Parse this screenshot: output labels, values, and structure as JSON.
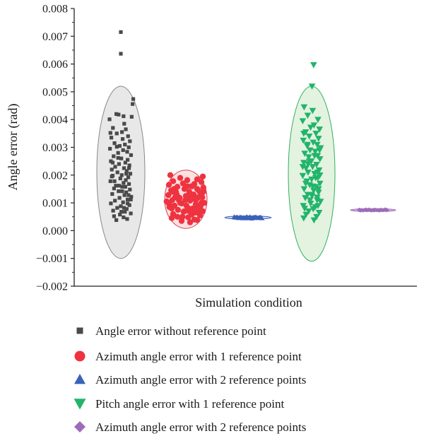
{
  "chart_data": {
    "type": "scatter",
    "xlabel": "Simulation condition",
    "ylabel": "Angle error (rad)",
    "ylim": [
      -0.002,
      0.008
    ],
    "yticks": [
      "−0.002",
      "−0.001",
      "0.000",
      "0.001",
      "0.002",
      "0.003",
      "0.004",
      "0.005",
      "0.006",
      "0.007",
      "0.008"
    ],
    "ytick_values": [
      -0.002,
      -0.001,
      0.0,
      0.001,
      0.002,
      0.003,
      0.004,
      0.005,
      0.006,
      0.007,
      0.008
    ],
    "grid": false,
    "legend_position": "bottom",
    "series": [
      {
        "name": "Angle error without reference point",
        "marker": "square",
        "color": "#4a4a4a",
        "x": 1,
        "ellipse": {
          "center": 0.0021,
          "half_height": 0.0031,
          "fill": "#e8e8e8",
          "stroke": "#888888"
        },
        "values": [
          0.00715,
          0.00637,
          0.00474,
          0.00456,
          0.0042,
          0.00418,
          0.00412,
          0.0041,
          0.00401,
          0.00385,
          0.0037,
          0.00365,
          0.00355,
          0.0035,
          0.0034,
          0.00335,
          0.0033,
          0.00322,
          0.00315,
          0.0031,
          0.00305,
          0.003,
          0.00295,
          0.0029,
          0.00284,
          0.0028,
          0.00272,
          0.00268,
          0.0026,
          0.00255,
          0.0025,
          0.00245,
          0.0024,
          0.00235,
          0.0023,
          0.00225,
          0.0022,
          0.00215,
          0.0021,
          0.00205,
          0.002,
          0.00198,
          0.00192,
          0.00188,
          0.00182,
          0.00178,
          0.00172,
          0.00168,
          0.00162,
          0.00158,
          0.00152,
          0.00148,
          0.00142,
          0.00138,
          0.00132,
          0.00128,
          0.00122,
          0.00118,
          0.00112,
          0.00108,
          0.00102,
          0.00098,
          0.00092,
          0.00088,
          0.00082,
          0.00078,
          0.00072,
          0.00068,
          0.00062,
          0.00058,
          0.00052,
          0.00048,
          0.00042,
          0.00038,
          0.00225,
          0.00178,
          0.00142,
          0.00262,
          0.00112,
          0.00195,
          0.00158,
          0.00302,
          0.00128,
          0.00068,
          0.00245,
          0.00098,
          0.00162,
          0.00352,
          0.00205,
          0.00082
        ],
        "jitter": [
          0.0,
          0.0,
          0.55,
          0.52,
          -0.2,
          -0.1,
          0.12,
          0.48,
          -0.5,
          0.15,
          -0.35,
          0.22,
          0.05,
          -0.18,
          0.32,
          -0.42,
          0.08,
          0.4,
          -0.28,
          0.18,
          -0.05,
          0.35,
          -0.48,
          0.1,
          0.28,
          -0.12,
          0.45,
          -0.32,
          0.02,
          0.3,
          -0.44,
          0.2,
          -0.08,
          0.38,
          -0.25,
          0.14,
          -0.4,
          0.26,
          -0.15,
          0.42,
          0.04,
          -0.36,
          0.33,
          -0.02,
          0.22,
          -0.46,
          0.12,
          0.36,
          -0.22,
          0.06,
          -0.3,
          0.4,
          -0.1,
          0.24,
          -0.38,
          0.16,
          0.46,
          -0.06,
          0.3,
          -0.26,
          0.1,
          -0.44,
          0.38,
          0.0,
          -0.16,
          0.26,
          -0.34,
          0.18,
          0.44,
          -0.04,
          -0.3,
          0.12,
          0.28,
          -0.2,
          0.36,
          -0.28,
          0.06,
          -0.12,
          0.44,
          -0.4,
          0.2,
          -0.18,
          0.34,
          0.02,
          -0.36,
          0.3,
          -0.08,
          -0.46,
          0.24,
          0.14
        ]
      },
      {
        "name": "Azimuth angle error with 1 reference point",
        "marker": "circle",
        "color": "#ee3340",
        "x": 2,
        "ellipse": {
          "center": 0.00113,
          "half_height": 0.00105,
          "fill": "#fde0e0",
          "stroke": "#d04050"
        },
        "values": [
          0.002,
          0.00195,
          0.0019,
          0.00185,
          0.00182,
          0.00178,
          0.00175,
          0.0017,
          0.00168,
          0.00165,
          0.0016,
          0.00158,
          0.00155,
          0.0015,
          0.00148,
          0.00145,
          0.0014,
          0.00138,
          0.00135,
          0.0013,
          0.00128,
          0.00125,
          0.0012,
          0.00118,
          0.00115,
          0.0011,
          0.00108,
          0.00105,
          0.001,
          0.00098,
          0.00095,
          0.0009,
          0.00088,
          0.00085,
          0.0008,
          0.00078,
          0.00075,
          0.0007,
          0.00068,
          0.00065,
          0.0006,
          0.00058,
          0.00055,
          0.0005,
          0.00048,
          0.00045,
          0.0004,
          0.00038,
          0.00035,
          0.0003,
          0.0014,
          0.0012,
          0.001,
          0.0008,
          0.0016,
          0.0009,
          0.0013,
          0.0011,
          0.0007,
          0.0015,
          0.0012,
          0.001,
          0.0014,
          0.0006,
          0.0017,
          0.0009,
          0.0011,
          0.0013,
          0.0008,
          0.0012,
          0.0015,
          0.0005,
          0.001,
          0.0013,
          0.0016,
          0.0007,
          0.0011,
          0.0009,
          0.0014,
          0.0012
        ],
        "jitter": [
          -0.55,
          0.6,
          -0.2,
          0.4,
          0.05,
          -0.45,
          0.55,
          -0.1,
          0.3,
          -0.6,
          0.2,
          -0.3,
          0.62,
          -0.05,
          0.42,
          -0.52,
          0.12,
          0.5,
          -0.35,
          0.25,
          -0.62,
          0.0,
          0.58,
          -0.22,
          0.38,
          -0.48,
          0.15,
          -0.68,
          0.65,
          -0.15,
          0.35,
          -0.4,
          0.52,
          -0.58,
          0.1,
          0.45,
          -0.28,
          0.6,
          -0.08,
          0.32,
          -0.45,
          0.2,
          0.5,
          -0.3,
          0.08,
          -0.5,
          0.3,
          0.4,
          -0.15,
          0.15,
          -0.35,
          0.45,
          -0.2,
          0.25,
          0.05,
          -0.55,
          0.55,
          0.35,
          -0.05,
          -0.42,
          0.18,
          -0.62,
          0.62,
          0.48,
          -0.1,
          0.02,
          -0.25,
          0.28,
          -0.5,
          -0.38,
          0.4,
          -0.12,
          0.55,
          -0.32,
          0.22,
          0.12,
          -0.02,
          0.38,
          -0.48,
          0.1
        ],
        "bubble_y": [
          0.0,
          0.0,
          0.0,
          0.0,
          0.0,
          0.0,
          0.0,
          0.0,
          0.0,
          0.0,
          0.0,
          0.0,
          0.0,
          0.0,
          0.0,
          0.0,
          0.0,
          0.0,
          0.0,
          0.0,
          0.0,
          0.0,
          0.0,
          0.0,
          0.0,
          0.0,
          0.0,
          0.0,
          0.0,
          0.0,
          0.0,
          0.0,
          0.0,
          0.0,
          0.0,
          0.0,
          0.0,
          0.0,
          0.0,
          0.0,
          0.0,
          0.0,
          0.0,
          0.0,
          0.0,
          0.0,
          0.0,
          0.0,
          0.0,
          0.0,
          0.0,
          0.0,
          0.0,
          0.0,
          0.0,
          0.0,
          0.0,
          0.0,
          0.0,
          0.0,
          0.0,
          0.0,
          0.0,
          0.0,
          0.0,
          0.0,
          0.0,
          0.0,
          0.0,
          0.0,
          0.0,
          0.0,
          0.0,
          0.0,
          0.0,
          0.0,
          0.0,
          0.0,
          0.0,
          0.0
        ]
      },
      {
        "name": "Azimuth angle error with 2 reference points",
        "marker": "triangle-up",
        "color": "#3a62b8",
        "x": 3,
        "ellipse": {
          "center": 0.00047,
          "half_height": 6e-05,
          "fill": "#c6d4f0",
          "stroke": "#3a62b8"
        },
        "values": [
          0.0005,
          0.00048,
          0.00046,
          0.00049,
          0.00045,
          0.00047,
          0.00048,
          0.00046,
          0.0005,
          0.00044,
          0.00047,
          0.00049,
          0.00046,
          0.00048,
          0.00045,
          0.00047,
          0.00049,
          0.00046,
          0.00048,
          0.00047,
          0.00045,
          0.0005,
          0.00047,
          0.00046,
          0.00048,
          0.00049,
          0.00046,
          0.00047,
          0.00048,
          0.00045
        ],
        "jitter": [
          -0.7,
          -0.6,
          -0.5,
          -0.4,
          -0.3,
          -0.2,
          -0.1,
          0.0,
          0.1,
          0.2,
          0.3,
          0.4,
          0.5,
          0.6,
          0.7,
          -0.65,
          -0.55,
          -0.45,
          -0.35,
          -0.25,
          -0.15,
          -0.05,
          0.05,
          0.15,
          0.25,
          0.35,
          0.45,
          0.55,
          0.65,
          0.0
        ]
      },
      {
        "name": "Pitch angle error with 1 reference point",
        "marker": "triangle-down",
        "color": "#22b46a",
        "x": 4,
        "ellipse": {
          "center": 0.00205,
          "half_height": 0.00315,
          "fill": "#e3f3e0",
          "stroke": "#30b060"
        },
        "values": [
          0.00597,
          0.0052,
          0.00445,
          0.00432,
          0.00415,
          0.004,
          0.00395,
          0.0038,
          0.00372,
          0.00365,
          0.00355,
          0.0035,
          0.0034,
          0.00332,
          0.00325,
          0.00318,
          0.0031,
          0.00305,
          0.00298,
          0.0029,
          0.00285,
          0.00278,
          0.0027,
          0.00265,
          0.00258,
          0.0025,
          0.00245,
          0.00238,
          0.0023,
          0.00225,
          0.00218,
          0.0021,
          0.00205,
          0.00198,
          0.0019,
          0.00185,
          0.00178,
          0.0017,
          0.00165,
          0.00158,
          0.0015,
          0.00145,
          0.00138,
          0.0013,
          0.00125,
          0.00118,
          0.0011,
          0.00105,
          0.00098,
          0.0009,
          0.00085,
          0.00078,
          0.0007,
          0.00065,
          0.00058,
          0.0005,
          0.00045,
          0.00038,
          0.0025,
          0.0021,
          0.0017,
          0.0029,
          0.0013,
          0.0023,
          0.0019,
          0.0031,
          0.0015,
          0.0011,
          0.0027,
          0.0008,
          0.002,
          0.0016,
          0.0024,
          0.0012,
          0.0035,
          0.0009
        ],
        "jitter": [
          0.1,
          0.02,
          -0.38,
          0.05,
          -0.2,
          0.32,
          -0.45,
          0.12,
          -0.05,
          0.4,
          -0.3,
          0.22,
          -0.12,
          0.35,
          -0.42,
          0.08,
          0.28,
          -0.22,
          0.45,
          -0.08,
          0.18,
          -0.35,
          0.3,
          -0.15,
          0.42,
          -0.02,
          -0.4,
          0.25,
          0.05,
          -0.28,
          0.38,
          -0.18,
          0.15,
          -0.45,
          0.32,
          0.0,
          -0.25,
          0.42,
          -0.1,
          0.22,
          -0.38,
          0.1,
          0.35,
          -0.2,
          0.02,
          -0.32,
          0.28,
          0.45,
          -0.05,
          -0.42,
          0.18,
          0.08,
          -0.15,
          0.38,
          -0.28,
          0.25,
          -0.4,
          0.12,
          -0.12,
          0.3,
          -0.3,
          0.4,
          0.0,
          -0.45,
          0.2,
          -0.22,
          0.35,
          -0.08,
          0.15,
          -0.35,
          0.42,
          0.05,
          -0.18,
          0.28,
          -0.4,
          0.32
        ]
      },
      {
        "name": "Azimuth angle error with 2 reference points",
        "marker": "diamond",
        "color": "#9d6cb8",
        "x": 5,
        "ellipse": {
          "center": 0.00074,
          "half_height": 5e-05,
          "fill": "#d6c2e4",
          "stroke": "#9d6cb8"
        },
        "values": [
          0.00075,
          0.00074,
          0.00073,
          0.00075,
          0.00074,
          0.00076,
          0.00073,
          0.00074,
          0.00075,
          0.00074,
          0.00073,
          0.00075,
          0.00074,
          0.00076,
          0.00074,
          0.00073,
          0.00075,
          0.00074,
          0.00074,
          0.00075
        ],
        "jitter": [
          -0.7,
          -0.6,
          -0.5,
          -0.4,
          -0.3,
          -0.2,
          -0.1,
          0.0,
          0.1,
          0.2,
          0.3,
          0.4,
          0.5,
          0.6,
          0.7,
          -0.65,
          -0.35,
          0.05,
          0.35,
          0.65
        ]
      }
    ]
  },
  "legend": {
    "items": [
      {
        "label": "Angle error without reference point",
        "marker": "square",
        "color": "#4a4a4a"
      },
      {
        "label": "Azimuth angle error with 1 reference point",
        "marker": "circle",
        "color": "#ee3340"
      },
      {
        "label": "Azimuth angle error with 2 reference points",
        "marker": "triangle-up",
        "color": "#3a62b8"
      },
      {
        "label": "Pitch angle error with 1 reference point",
        "marker": "triangle-down",
        "color": "#22b46a"
      },
      {
        "label": "Azimuth angle error with 2 reference points",
        "marker": "diamond",
        "color": "#9d6cb8"
      }
    ]
  }
}
